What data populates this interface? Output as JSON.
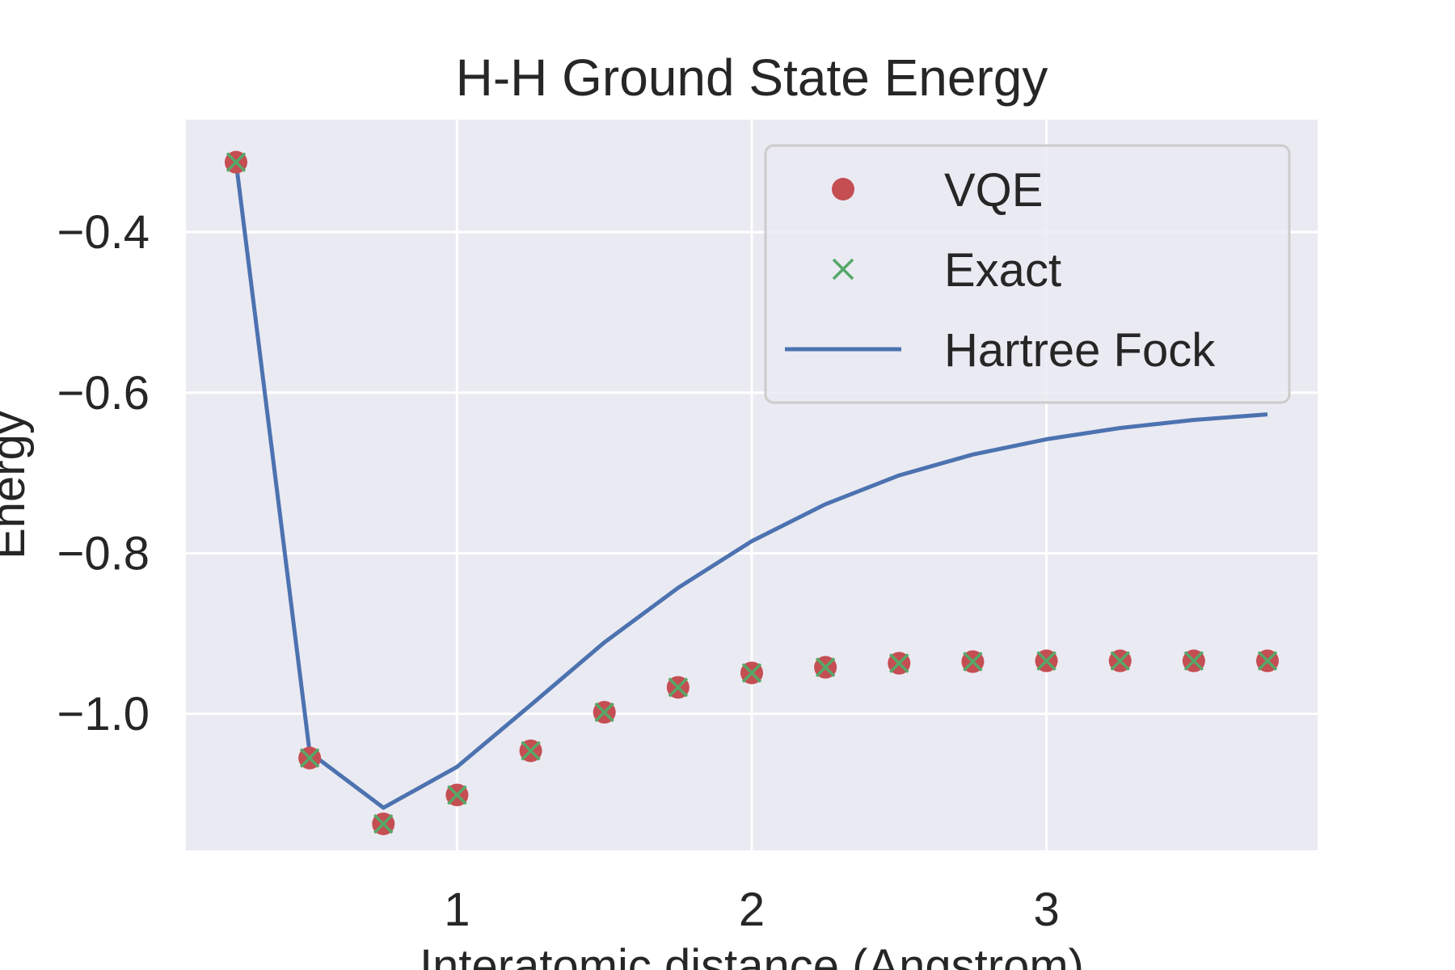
{
  "chart_data": {
    "type": "line",
    "title": "H-H Ground State Energy",
    "xlabel": "Interatomic distance (Angstrom)",
    "ylabel": "Energy",
    "xlim": [
      0.08,
      3.92
    ],
    "ylim": [
      -1.17,
      -0.26
    ],
    "xticks": [
      1,
      2,
      3
    ],
    "xtick_labels": [
      "1",
      "2",
      "3"
    ],
    "yticks": [
      -0.4,
      -0.6,
      -0.8,
      -1.0
    ],
    "ytick_labels": [
      "−0.4",
      "−0.6",
      "−0.8",
      "−1.0"
    ],
    "grid": true,
    "legend_position": "upper right",
    "x": [
      0.25,
      0.5,
      0.75,
      1.0,
      1.25,
      1.5,
      1.75,
      2.0,
      2.25,
      2.5,
      2.75,
      3.0,
      3.25,
      3.5,
      3.75
    ],
    "series": [
      {
        "name": "VQE",
        "style": "dots",
        "color": "#c44e52",
        "values": [
          -0.313,
          -1.055,
          -1.137,
          -1.101,
          -1.046,
          -0.998,
          -0.967,
          -0.949,
          -0.942,
          -0.937,
          -0.935,
          -0.934,
          -0.934,
          -0.934,
          -0.934
        ]
      },
      {
        "name": "Exact",
        "style": "x",
        "color": "#55a868",
        "values": [
          -0.313,
          -1.055,
          -1.137,
          -1.101,
          -1.046,
          -0.998,
          -0.967,
          -0.949,
          -0.942,
          -0.937,
          -0.935,
          -0.934,
          -0.934,
          -0.934,
          -0.934
        ]
      },
      {
        "name": "Hartree Fock",
        "style": "line",
        "color": "#4c72b0",
        "values": [
          -0.313,
          -1.048,
          -1.117,
          -1.066,
          -0.989,
          -0.911,
          -0.843,
          -0.785,
          -0.739,
          -0.703,
          -0.677,
          -0.658,
          -0.644,
          -0.634,
          -0.627
        ]
      }
    ]
  },
  "colors": {
    "plot_background": "#eaeaf2",
    "grid": "#ffffff",
    "text": "#262626"
  }
}
